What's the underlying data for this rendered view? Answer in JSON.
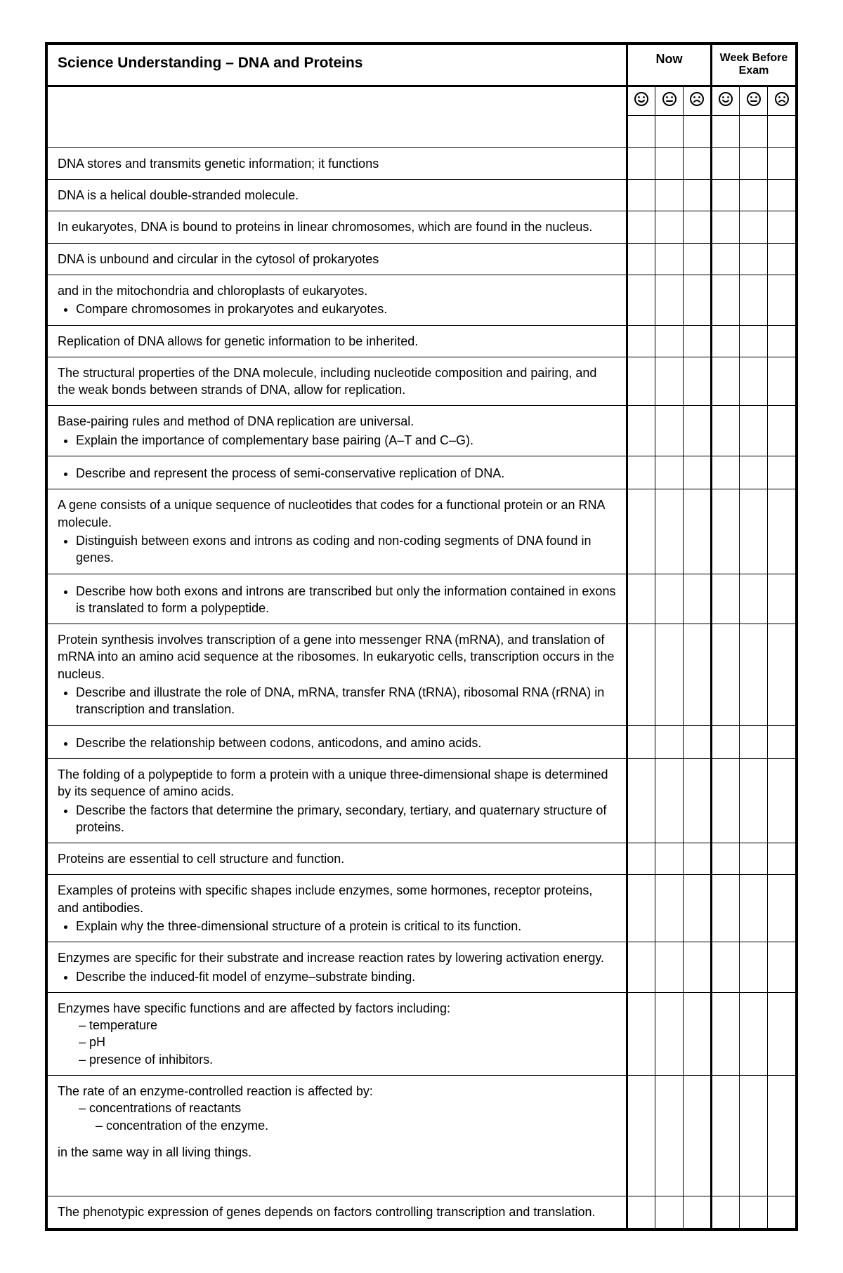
{
  "title": "Science Understanding – DNA and Proteins",
  "columns": {
    "now_label": "Now",
    "week_before_label": "Week Before Exam",
    "icons": {
      "happy": "☻",
      "neutral": "☻",
      "sad": "☹"
    },
    "icon_set": [
      "happy",
      "neutral",
      "sad"
    ]
  },
  "rows": [
    {
      "type": "icon_header"
    },
    {
      "type": "blank_label"
    },
    {
      "type": "item",
      "main": "DNA stores and transmits genetic information; it functions"
    },
    {
      "type": "item",
      "main": "DNA is a helical double-stranded molecule."
    },
    {
      "type": "item",
      "main": "In eukaryotes, DNA is bound to proteins in linear chromosomes, which are found in the nucleus."
    },
    {
      "type": "item",
      "main": "DNA is unbound and circular in the cytosol of prokaryotes"
    },
    {
      "type": "item",
      "main": "and in the mitochondria and chloroplasts of eukaryotes.",
      "bullets": [
        "Compare chromosomes in prokaryotes and eukaryotes."
      ]
    },
    {
      "type": "item",
      "main": "Replication of DNA allows for genetic information to be inherited."
    },
    {
      "type": "item",
      "main": "The structural properties of the DNA molecule, including nucleotide composition and pairing, and the weak bonds between strands of DNA, allow for replication."
    },
    {
      "type": "item",
      "main": "Base-pairing rules and method of DNA replication are universal.",
      "bullets": [
        "Explain the importance of complementary base pairing (A–T and C–G)."
      ]
    },
    {
      "type": "item",
      "bullets": [
        "Describe and represent the process of semi-conservative replication of DNA."
      ]
    },
    {
      "type": "item",
      "main": "A gene consists of a unique sequence of nucleotides that codes for a functional protein or an RNA molecule.",
      "bullets": [
        "Distinguish between exons and introns as coding and non-coding segments of DNA found in genes."
      ]
    },
    {
      "type": "item",
      "bullets": [
        "Describe how both exons and introns are transcribed but only the information contained in exons is translated to form a polypeptide."
      ]
    },
    {
      "type": "item",
      "main": "Protein synthesis involves transcription of a gene into messenger RNA (mRNA), and translation of mRNA into an amino acid sequence at the ribosomes. In eukaryotic cells, transcription occurs in the nucleus.",
      "bullets": [
        "Describe and illustrate the role of DNA, mRNA, transfer RNA (tRNA), ribosomal RNA (rRNA) in transcription and translation."
      ]
    },
    {
      "type": "item",
      "bullets": [
        "Describe the relationship between codons, anticodons, and amino acids."
      ]
    },
    {
      "type": "item",
      "main": "The folding of a polypeptide to form a protein with a unique three-dimensional shape is determined by its sequence of amino acids.",
      "bullets": [
        "Describe the factors that determine the primary, secondary, tertiary, and quaternary structure of proteins."
      ]
    },
    {
      "type": "item",
      "main": "Proteins are essential to cell structure and function."
    },
    {
      "type": "item",
      "main": "Examples of proteins with specific shapes include enzymes, some hormones, receptor proteins, and antibodies.",
      "bullets": [
        "Explain why the three-dimensional structure of a protein is critical to its function."
      ]
    },
    {
      "type": "item",
      "main": "Enzymes are specific for their substrate and increase reaction rates by lowering activation energy.",
      "bullets": [
        "Describe the induced-fit model of enzyme–substrate binding."
      ]
    },
    {
      "type": "item",
      "main": "Enzymes have specific functions and are affected by factors including:",
      "dashes": [
        "temperature",
        "pH",
        "presence of inhibitors."
      ]
    },
    {
      "type": "item",
      "main": "The rate of an enzyme-controlled reaction is affected by:",
      "dashes": [
        "concentrations of reactants"
      ],
      "dashes_indent2": [
        "concentration of the enzyme."
      ],
      "trailing": "in the same way in all living things.",
      "extra_space_after": true
    },
    {
      "type": "item",
      "main": "The phenotypic expression of genes depends on factors controlling transcription and translation."
    }
  ]
}
